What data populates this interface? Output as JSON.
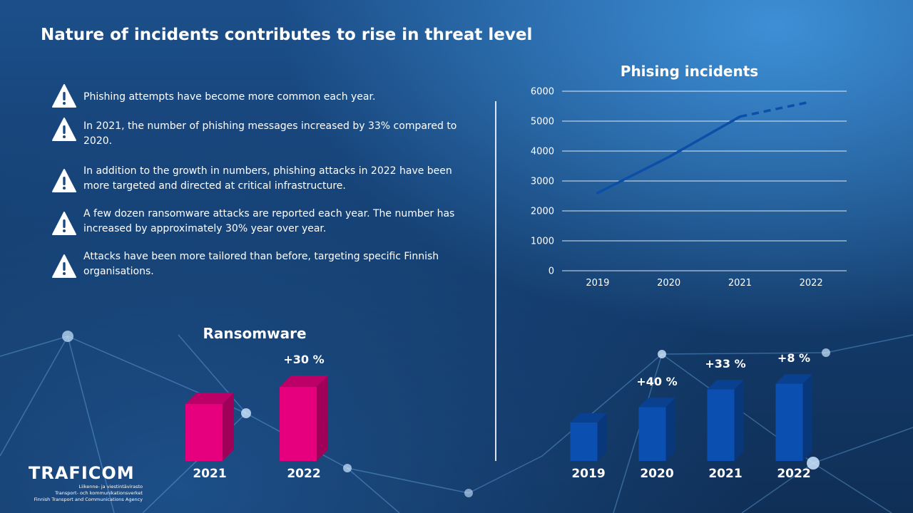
{
  "page": {
    "title": "Nature of incidents contributes to rise in threat level"
  },
  "bullets": [
    "Phishing attempts have become more common each year.",
    "In 2021, the number of phishing messages increased by 33% compared to 2020.",
    "In addition to the growth in numbers, phishing attacks in 2022 have been more targeted and directed at critical infrastructure.",
    "A few dozen ransomware attacks are reported each year. The number has increased by approximately 30% year over year.",
    "Attacks have been more tailored than before, targeting specific Finnish organisations."
  ],
  "logo": {
    "name": "TRAFICOM",
    "sub1": "Liikenne- ja viestintävirasto",
    "sub2": "Transport- och kommunikationsverket",
    "sub3": "Finnish Transport and Communications Agency"
  },
  "colors": {
    "ransomware_bar": "#e6007e",
    "phishing_bar": "#0b4fb0",
    "line": "#0d4fa8"
  },
  "chart_data": [
    {
      "type": "line",
      "title": "Phising incidents",
      "x": [
        "2019",
        "2020",
        "2021",
        "2022"
      ],
      "values": [
        2600,
        3800,
        5150,
        5650
      ],
      "projected_from_index": 2,
      "ylim": [
        0,
        6000
      ],
      "yticks": [
        "0",
        "1000",
        "2000",
        "3000",
        "4000",
        "5000",
        "6000"
      ],
      "grid": true
    },
    {
      "type": "bar",
      "title": "Ransomware",
      "categories": [
        "2021",
        "2022"
      ],
      "values": [
        1.0,
        1.3
      ],
      "labels": [
        "",
        "+30 %"
      ]
    },
    {
      "type": "bar",
      "title": "",
      "categories": [
        "2019",
        "2020",
        "2021",
        "2022"
      ],
      "values": [
        1.0,
        1.4,
        1.862,
        2.011
      ],
      "labels": [
        "",
        "+40 %",
        "+33 %",
        "+8 %"
      ]
    }
  ]
}
